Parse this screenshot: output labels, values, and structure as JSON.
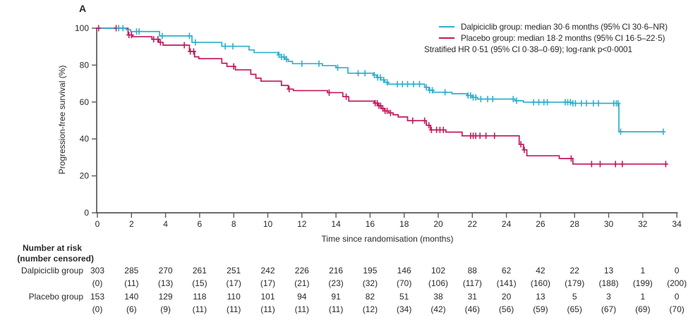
{
  "panel_label": "A",
  "colors": {
    "dalpiciclib": "#2eb0cd",
    "placebo": "#c11a5e",
    "axis": "#58595b",
    "text": "#2b2a28"
  },
  "legend": {
    "entries": [
      {
        "label": "Dalpiciclib group: median 30·6 months (95% CI 30·6–NR)",
        "color": "#2eb0cd"
      },
      {
        "label": "Placebo group: median 18·2 months (95% CI 16·5–22·5)",
        "color": "#c11a5e"
      }
    ],
    "note": "Stratified HR 0·51 (95% CI 0·38–0·69); log-rank p<0·0001"
  },
  "chart_data": {
    "type": "line",
    "subtype": "kaplan_meier_step",
    "title": "",
    "xlabel": "Time since randomisation (months)",
    "ylabel": "Progression-free survival (%)",
    "xlim": [
      0,
      34
    ],
    "ylim": [
      0,
      100
    ],
    "xticks": [
      0,
      2,
      4,
      6,
      8,
      10,
      12,
      14,
      16,
      18,
      20,
      22,
      24,
      26,
      28,
      30,
      32,
      34
    ],
    "yticks": [
      0,
      20,
      40,
      60,
      80,
      100
    ],
    "grid": false,
    "legend_position": "top-right",
    "series": [
      {
        "id": "dalpiciclib",
        "name": "Dalpiciclib group",
        "color": "#2eb0cd",
        "steps": [
          [
            0,
            100
          ],
          [
            1.7,
            99.2
          ],
          [
            1.95,
            98.2
          ],
          [
            3.65,
            95.8
          ],
          [
            5.55,
            92.3
          ],
          [
            7.3,
            90.2
          ],
          [
            8.9,
            88.2
          ],
          [
            9.2,
            86.8
          ],
          [
            10.6,
            85.6
          ],
          [
            10.8,
            84.4
          ],
          [
            11.0,
            83.2
          ],
          [
            11.2,
            82.0
          ],
          [
            11.45,
            80.8
          ],
          [
            13.2,
            79.7
          ],
          [
            14.0,
            78.6
          ],
          [
            14.7,
            75.6
          ],
          [
            16.2,
            74.6
          ],
          [
            16.4,
            73.3
          ],
          [
            16.62,
            72.0
          ],
          [
            16.85,
            70.7
          ],
          [
            17.05,
            69.7
          ],
          [
            19.2,
            68.0
          ],
          [
            19.45,
            66.4
          ],
          [
            19.7,
            65.3
          ],
          [
            20.8,
            64.5
          ],
          [
            21.7,
            63.5
          ],
          [
            22.0,
            62.5
          ],
          [
            22.3,
            61.6
          ],
          [
            24.5,
            60.7
          ],
          [
            25.0,
            59.9
          ],
          [
            27.8,
            59.3
          ],
          [
            30.6,
            43.9
          ],
          [
            33.2,
            43.9
          ]
        ],
        "censor_marks": [
          1.25,
          1.5,
          2.3,
          2.45,
          3.8,
          5.4,
          5.75,
          7.5,
          7.95,
          10.65,
          10.8,
          10.95,
          11.1,
          12.0,
          13.0,
          14.1,
          15.3,
          15.7,
          16.25,
          16.45,
          16.6,
          16.8,
          17.0,
          17.6,
          17.9,
          18.2,
          18.55,
          18.9,
          19.3,
          19.5,
          19.65,
          20.4,
          21.75,
          21.9,
          22.05,
          22.2,
          22.5,
          22.9,
          23.2,
          24.4,
          24.6,
          25.6,
          25.9,
          26.2,
          26.4,
          27.45,
          27.6,
          27.75,
          27.9,
          28.05,
          28.4,
          28.7,
          29.1,
          29.4,
          30.3,
          30.45,
          30.55,
          30.7,
          33.2
        ]
      },
      {
        "id": "placebo",
        "name": "Placebo group",
        "color": "#c11a5e",
        "steps": [
          [
            0,
            100
          ],
          [
            1.8,
            96.3
          ],
          [
            2.05,
            95.4
          ],
          [
            3.2,
            94.0
          ],
          [
            3.6,
            92.3
          ],
          [
            3.85,
            90.8
          ],
          [
            5.4,
            87.4
          ],
          [
            5.7,
            84.5
          ],
          [
            5.95,
            83.5
          ],
          [
            7.3,
            81.0
          ],
          [
            7.6,
            79.3
          ],
          [
            8.1,
            77.4
          ],
          [
            9.0,
            75.0
          ],
          [
            9.3,
            72.9
          ],
          [
            9.6,
            71.3
          ],
          [
            10.8,
            69.0
          ],
          [
            11.2,
            67.0
          ],
          [
            11.5,
            66.2
          ],
          [
            13.5,
            65.1
          ],
          [
            14.4,
            62.9
          ],
          [
            14.75,
            60.5
          ],
          [
            16.25,
            59.4
          ],
          [
            16.45,
            58.0
          ],
          [
            16.65,
            56.5
          ],
          [
            16.85,
            55.2
          ],
          [
            17.1,
            54.1
          ],
          [
            17.35,
            53.1
          ],
          [
            17.65,
            51.9
          ],
          [
            18.2,
            49.9
          ],
          [
            19.3,
            47.4
          ],
          [
            19.55,
            44.9
          ],
          [
            20.45,
            43.7
          ],
          [
            21.4,
            41.7
          ],
          [
            24.75,
            37.1
          ],
          [
            25.0,
            34.1
          ],
          [
            25.2,
            30.9
          ],
          [
            27.1,
            29.4
          ],
          [
            27.9,
            26.4
          ],
          [
            33.4,
            26.4
          ]
        ],
        "censor_marks": [
          0.07,
          1.1,
          1.85,
          2.0,
          3.3,
          3.55,
          3.7,
          5.1,
          5.45,
          5.65,
          8.0,
          11.25,
          13.6,
          14.6,
          16.3,
          16.42,
          16.52,
          16.62,
          16.75,
          16.88,
          17.0,
          17.2,
          18.5,
          19.2,
          19.45,
          19.6,
          19.9,
          20.1,
          20.3,
          21.9,
          22.05,
          22.2,
          22.45,
          22.8,
          23.3,
          24.85,
          25.05,
          27.8,
          29.0,
          29.5,
          30.4,
          30.8,
          33.35
        ]
      }
    ]
  },
  "risk_table": {
    "header_line1": "Number at risk",
    "header_line2": "(number censored)",
    "times": [
      0,
      2,
      4,
      6,
      8,
      10,
      12,
      14,
      16,
      18,
      20,
      22,
      24,
      26,
      28,
      30,
      32,
      34
    ],
    "groups": [
      {
        "label": "Dalpiciclib group",
        "at_risk": [
          303,
          285,
          270,
          261,
          251,
          242,
          226,
          216,
          195,
          146,
          102,
          88,
          62,
          42,
          22,
          13,
          1,
          0
        ],
        "censored": [
          "(0)",
          "(11)",
          "(13)",
          "(15)",
          "(17)",
          "(17)",
          "(21)",
          "(23)",
          "(32)",
          "(70)",
          "(106)",
          "(117)",
          "(141)",
          "(160)",
          "(179)",
          "(188)",
          "(199)",
          "(200)"
        ]
      },
      {
        "label": "Placebo group",
        "at_risk": [
          153,
          140,
          129,
          118,
          110,
          101,
          94,
          91,
          82,
          51,
          38,
          31,
          20,
          13,
          5,
          3,
          1,
          0
        ],
        "censored": [
          "(0)",
          "(6)",
          "(9)",
          "(11)",
          "(11)",
          "(11)",
          "(11)",
          "(11)",
          "(12)",
          "(34)",
          "(42)",
          "(46)",
          "(56)",
          "(59)",
          "(65)",
          "(67)",
          "(69)",
          "(70)"
        ]
      }
    ]
  }
}
